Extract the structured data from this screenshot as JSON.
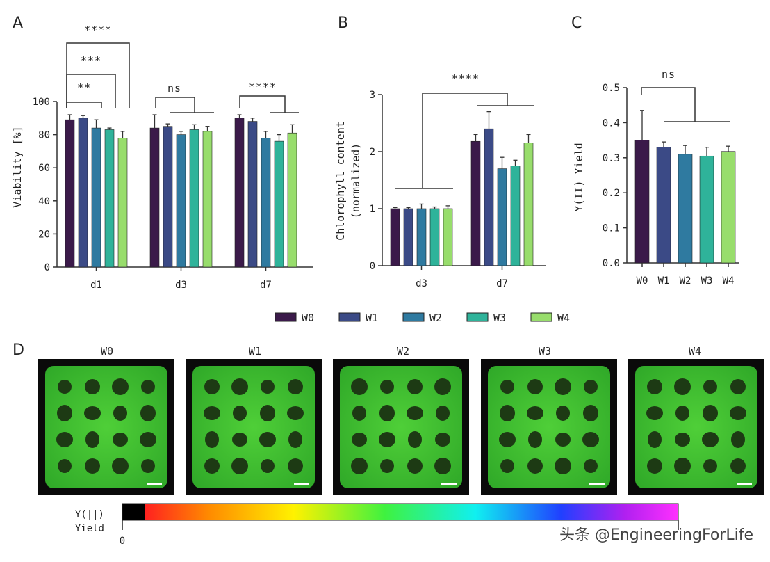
{
  "panels": {
    "a": "A",
    "b": "B",
    "c": "C",
    "d": "D"
  },
  "colors": {
    "W0": "#3b1a4a",
    "W1": "#3b4a86",
    "W2": "#2f7aa0",
    "W3": "#2fb39a",
    "W4": "#98dd6c",
    "axis": "#333333",
    "image_bg": "#0a0a0a",
    "gel": "#3fbf2e"
  },
  "legend": [
    "W0",
    "W1",
    "W2",
    "W3",
    "W4"
  ],
  "chart_data": [
    {
      "id": "A",
      "type": "bar",
      "categories": [
        "d1",
        "d3",
        "d7"
      ],
      "series_names": [
        "W0",
        "W1",
        "W2",
        "W3",
        "W4"
      ],
      "series": [
        {
          "name": "W0",
          "values": [
            89,
            84,
            90
          ],
          "errors": [
            3,
            8,
            2
          ]
        },
        {
          "name": "W1",
          "values": [
            90,
            85,
            88
          ],
          "errors": [
            1.5,
            1.5,
            2
          ]
        },
        {
          "name": "W2",
          "values": [
            84,
            80,
            78
          ],
          "errors": [
            5,
            2,
            4
          ]
        },
        {
          "name": "W3",
          "values": [
            83,
            83,
            76
          ],
          "errors": [
            1,
            3,
            4
          ]
        },
        {
          "name": "W4",
          "values": [
            78,
            82,
            81
          ],
          "errors": [
            4,
            3,
            5
          ]
        }
      ],
      "ylabel": "Viability [%]",
      "ylim": [
        0,
        100
      ],
      "yticks": [
        0,
        20,
        40,
        60,
        80,
        100
      ],
      "significance": [
        "****",
        "***",
        "**",
        "ns",
        "****"
      ]
    },
    {
      "id": "B",
      "type": "bar",
      "categories": [
        "d3",
        "d7"
      ],
      "series_names": [
        "W0",
        "W1",
        "W2",
        "W3",
        "W4"
      ],
      "series": [
        {
          "name": "W0",
          "values": [
            1.0,
            2.18
          ],
          "errors": [
            0.02,
            0.12
          ]
        },
        {
          "name": "W1",
          "values": [
            1.0,
            2.4
          ],
          "errors": [
            0.02,
            0.3
          ]
        },
        {
          "name": "W2",
          "values": [
            1.0,
            1.7
          ],
          "errors": [
            0.08,
            0.2
          ]
        },
        {
          "name": "W3",
          "values": [
            1.0,
            1.75
          ],
          "errors": [
            0.03,
            0.1
          ]
        },
        {
          "name": "W4",
          "values": [
            1.0,
            2.15
          ],
          "errors": [
            0.05,
            0.15
          ]
        }
      ],
      "ylabel": "Chlorophyll content",
      "ylabel2": "(normalized)",
      "ylim": [
        0,
        3
      ],
      "yticks": [
        0,
        1,
        2,
        3
      ],
      "significance": [
        "****"
      ]
    },
    {
      "id": "C",
      "type": "bar",
      "categories": [
        "W0",
        "W1",
        "W2",
        "W3",
        "W4"
      ],
      "values": [
        0.35,
        0.33,
        0.31,
        0.305,
        0.318
      ],
      "errors": [
        0.085,
        0.015,
        0.025,
        0.025,
        0.015
      ],
      "ylabel": "Y(II) Yield",
      "ylim": [
        0,
        0.5
      ],
      "yticks": [
        "0.0",
        "0.1",
        "0.2",
        "0.3",
        "0.4",
        "0.5"
      ],
      "significance": [
        "ns"
      ]
    }
  ],
  "images": {
    "labels": [
      "W0",
      "W1",
      "W2",
      "W3",
      "W4"
    ]
  },
  "colorbar": {
    "label_line1": "Y(||)",
    "label_line2": "Yield",
    "min": "0"
  },
  "watermark": "头条 @EngineeringForLife"
}
